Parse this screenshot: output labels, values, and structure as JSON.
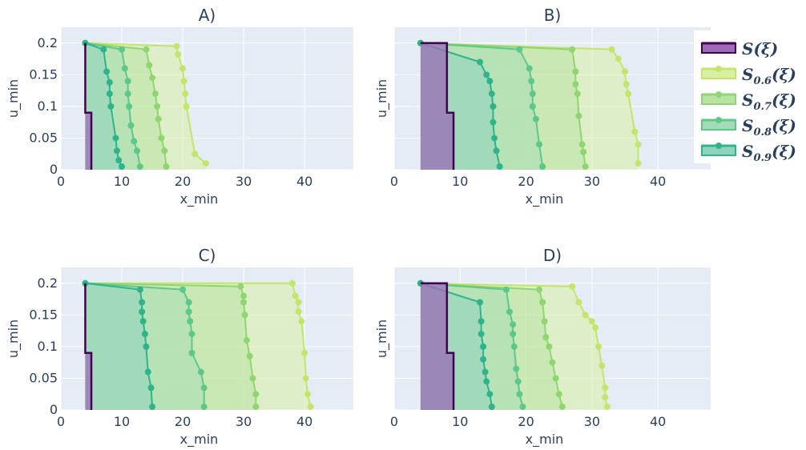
{
  "chart_data": {
    "type": "area",
    "x_axis_label": "x_min",
    "y_axis_label": "u_min",
    "xlim": [
      0,
      48
    ],
    "ylim": [
      0,
      0.225
    ],
    "x_ticks": [
      0,
      10,
      20,
      30,
      40
    ],
    "y_ticks": [
      0,
      0.05,
      0.1,
      0.15,
      0.2
    ],
    "y_tick_labels": [
      "0",
      "0.05",
      "0.1",
      "0.15",
      "0.2"
    ],
    "grid": true,
    "plot_background": "#e5ecf6",
    "legend": {
      "placement": "right",
      "entries": [
        {
          "key": "S",
          "label": "S(ξ)",
          "sub": "",
          "color": "#440154",
          "fill": "#9b6bb8"
        },
        {
          "key": "S06",
          "label": "S",
          "sub": "0.6",
          "suffix": "(ξ)",
          "color": "#c2e66b",
          "fill": "#d9f0a3"
        },
        {
          "key": "S07",
          "label": "S",
          "sub": "0.7",
          "suffix": "(ξ)",
          "color": "#8fd671",
          "fill": "#b8e3a3"
        },
        {
          "key": "S08",
          "label": "S",
          "sub": "0.8",
          "suffix": "(ξ)",
          "color": "#5ec78a",
          "fill": "#a5dcb8"
        },
        {
          "key": "S09",
          "label": "S",
          "sub": "0.9",
          "suffix": "(ξ)",
          "color": "#2fb38a",
          "fill": "#8fd3bd"
        }
      ]
    },
    "panels": [
      {
        "title": "A)",
        "show_y_tick_labels": true,
        "series": [
          {
            "name": "S(ξ)",
            "x": [
              4,
              4,
              5,
              5
            ],
            "y": [
              0.2,
              0.09,
              0.09,
              0
            ]
          },
          {
            "name": "S_0.6(ξ)",
            "x": [
              4,
              19,
              19.2,
              20,
              20.2,
              20.4,
              20.6,
              22,
              23.8
            ],
            "y": [
              0.2,
              0.195,
              0.182,
              0.16,
              0.14,
              0.12,
              0.1,
              0.025,
              0.01
            ]
          },
          {
            "name": "S_0.7(ξ)",
            "x": [
              4,
              14,
              14.5,
              15,
              15.5,
              15.8,
              16,
              16.5,
              17,
              17.3
            ],
            "y": [
              0.2,
              0.19,
              0.165,
              0.145,
              0.12,
              0.1,
              0.08,
              0.05,
              0.03,
              0.005
            ]
          },
          {
            "name": "S_0.8(ξ)",
            "x": [
              4,
              10,
              10.5,
              11,
              11,
              11.2,
              11.5,
              12,
              12.5,
              13
            ],
            "y": [
              0.2,
              0.19,
              0.16,
              0.14,
              0.12,
              0.1,
              0.07,
              0.045,
              0.03,
              0.005
            ]
          },
          {
            "name": "S_0.9(ξ)",
            "x": [
              4,
              7,
              7.5,
              8,
              8,
              8.2,
              9,
              9.2,
              9.5,
              10
            ],
            "y": [
              0.2,
              0.19,
              0.155,
              0.138,
              0.12,
              0.1,
              0.05,
              0.03,
              0.015,
              0.005
            ]
          }
        ]
      },
      {
        "title": "B)",
        "show_y_tick_labels": false,
        "series": [
          {
            "name": "S(ξ)",
            "x": [
              4,
              8,
              8,
              9,
              9
            ],
            "y": [
              0.2,
              0.2,
              0.09,
              0.09,
              0
            ]
          },
          {
            "name": "S_0.6(ξ)",
            "x": [
              4,
              33,
              34,
              35,
              35.2,
              35.5,
              36.5,
              37,
              37
            ],
            "y": [
              0.2,
              0.19,
              0.175,
              0.155,
              0.135,
              0.12,
              0.06,
              0.04,
              0.01
            ]
          },
          {
            "name": "S_0.7(ξ)",
            "x": [
              4,
              27,
              27.5,
              27.5,
              27.8,
              28,
              28.5,
              28.7,
              29
            ],
            "y": [
              0.2,
              0.19,
              0.155,
              0.135,
              0.12,
              0.085,
              0.04,
              0.028,
              0.005
            ]
          },
          {
            "name": "S_0.8(ξ)",
            "x": [
              4,
              19,
              20.5,
              20.8,
              21,
              21,
              21.5,
              22,
              22.5
            ],
            "y": [
              0.2,
              0.19,
              0.16,
              0.14,
              0.12,
              0.1,
              0.08,
              0.04,
              0.005
            ]
          },
          {
            "name": "S_0.9(ξ)",
            "x": [
              4,
              13,
              14,
              14.5,
              14.8,
              15,
              15,
              15.2,
              15.5,
              16
            ],
            "y": [
              0.2,
              0.17,
              0.15,
              0.14,
              0.12,
              0.1,
              0.075,
              0.05,
              0.03,
              0.005
            ]
          }
        ]
      },
      {
        "title": "C)",
        "show_y_tick_labels": true,
        "series": [
          {
            "name": "S(ξ)",
            "x": [
              4,
              4,
              5,
              5
            ],
            "y": [
              0.2,
              0.09,
              0.09,
              0
            ]
          },
          {
            "name": "S_0.6(ξ)",
            "x": [
              4,
              38,
              38.5,
              39,
              39,
              39.5,
              40,
              40.2,
              40.5,
              41
            ],
            "y": [
              0.2,
              0.2,
              0.18,
              0.17,
              0.155,
              0.14,
              0.09,
              0.05,
              0.025,
              0.005
            ]
          },
          {
            "name": "S_0.7(ξ)",
            "x": [
              4,
              29.5,
              30,
              30,
              30.2,
              30.5,
              31,
              31.5,
              32,
              32
            ],
            "y": [
              0.2,
              0.195,
              0.18,
              0.17,
              0.15,
              0.11,
              0.085,
              0.05,
              0.025,
              0.005
            ]
          },
          {
            "name": "S_0.8(ξ)",
            "x": [
              4,
              20,
              21,
              21,
              21.2,
              21.5,
              21.5,
              23,
              23.5,
              23.5
            ],
            "y": [
              0.2,
              0.19,
              0.17,
              0.155,
              0.14,
              0.12,
              0.09,
              0.06,
              0.035,
              0.005
            ]
          },
          {
            "name": "S_0.9(ξ)",
            "x": [
              4,
              13,
              13.3,
              13.3,
              13.5,
              13.8,
              14,
              14.3,
              14.8,
              15
            ],
            "y": [
              0.2,
              0.19,
              0.17,
              0.155,
              0.14,
              0.12,
              0.1,
              0.06,
              0.035,
              0.005
            ]
          }
        ]
      },
      {
        "title": "D)",
        "show_y_tick_labels": false,
        "series": [
          {
            "name": "S(ξ)",
            "x": [
              4,
              8,
              8,
              9,
              9
            ],
            "y": [
              0.2,
              0.2,
              0.09,
              0.09,
              0
            ]
          },
          {
            "name": "S_0.6(ξ)",
            "x": [
              4,
              27,
              28,
              29,
              30,
              30.5,
              31,
              31.5,
              32,
              32,
              32.3
            ],
            "y": [
              0.2,
              0.195,
              0.17,
              0.15,
              0.14,
              0.13,
              0.1,
              0.07,
              0.035,
              0.02,
              0.005
            ]
          },
          {
            "name": "S_0.7(ξ)",
            "x": [
              4,
              22,
              22.5,
              22.8,
              23,
              23.5,
              24,
              24.5,
              25,
              25.5
            ],
            "y": [
              0.2,
              0.19,
              0.17,
              0.14,
              0.115,
              0.1,
              0.075,
              0.05,
              0.025,
              0.005
            ]
          },
          {
            "name": "S_0.8(ξ)",
            "x": [
              4,
              17,
              17.5,
              18,
              18,
              18.2,
              18.5,
              18.8,
              19,
              19.5
            ],
            "y": [
              0.2,
              0.19,
              0.155,
              0.135,
              0.12,
              0.1,
              0.065,
              0.045,
              0.025,
              0.005
            ]
          },
          {
            "name": "S_0.9(ξ)",
            "x": [
              4,
              13,
              13.2,
              13.2,
              13.5,
              13.5,
              13.8,
              14,
              14.5,
              14.8
            ],
            "y": [
              0.2,
              0.17,
              0.14,
              0.12,
              0.1,
              0.08,
              0.06,
              0.045,
              0.025,
              0.005
            ]
          }
        ]
      }
    ]
  }
}
